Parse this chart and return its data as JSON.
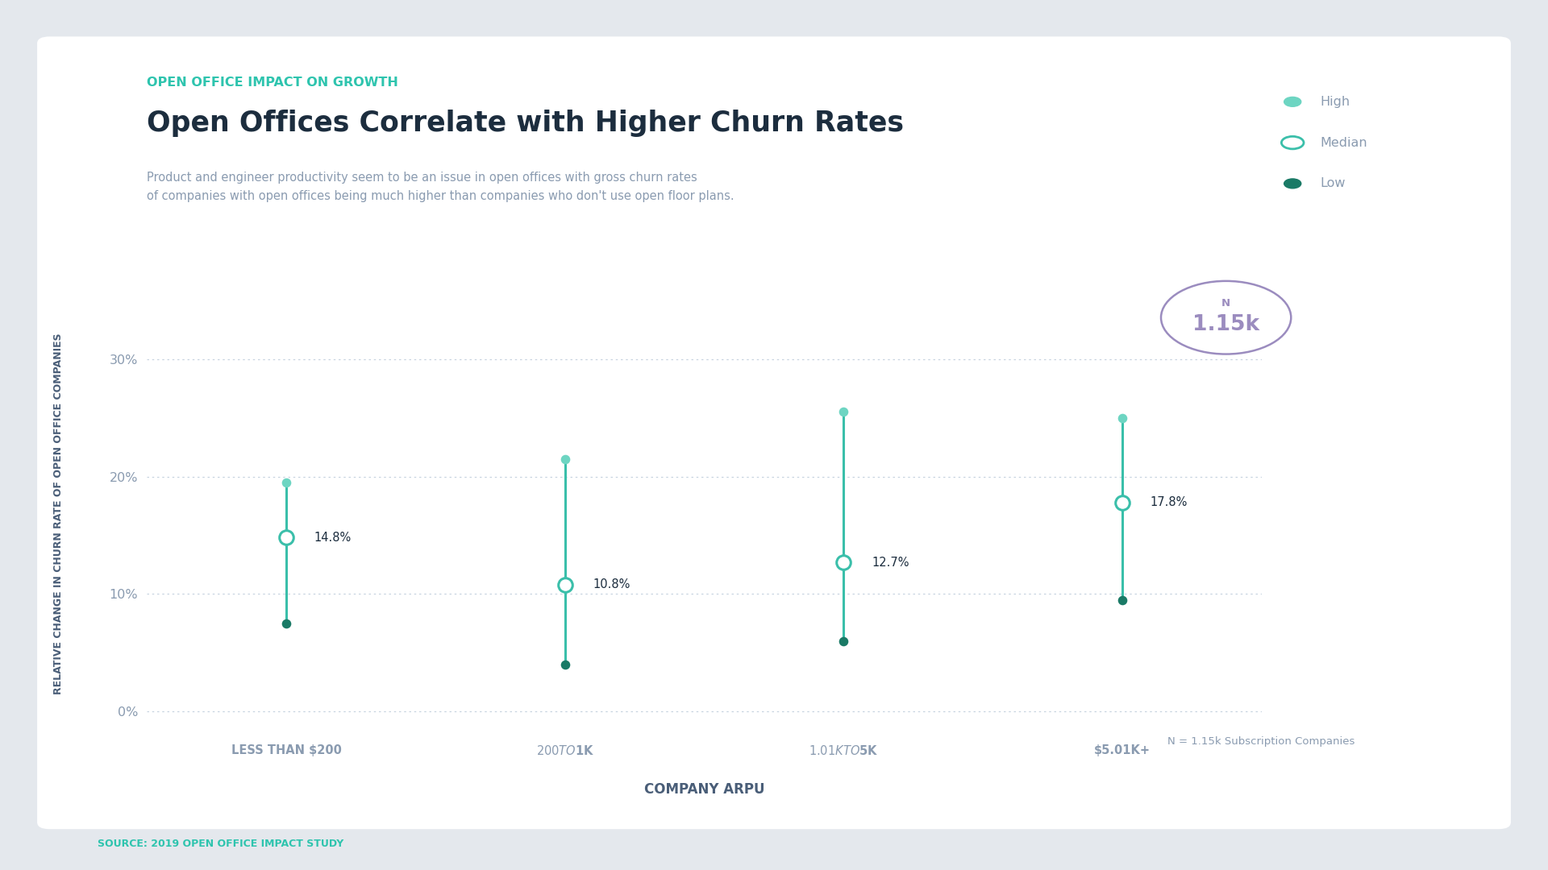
{
  "supertitle": "OPEN OFFICE IMPACT ON GROWTH",
  "title": "Open Offices Correlate with Higher Churn Rates",
  "subtitle": "Product and engineer productivity seem to be an issue in open offices with gross churn rates\nof companies with open offices being much higher than companies who don't use open floor plans.",
  "xlabel": "COMPANY ARPU",
  "ylabel": "RELATIVE CHANGE IN CHURN RATE OF OPEN OFFICE COMPANIES",
  "source": "SOURCE: 2019 OPEN OFFICE IMPACT STUDY",
  "n_label": "N",
  "n_value": "1.15k",
  "n_note": "N = 1.15k Subscription Companies",
  "categories": [
    "LESS THAN $200",
    "$200 TO $1K",
    "$1.01K TO $5K",
    "$5.01K+"
  ],
  "high": [
    19.5,
    21.5,
    25.5,
    25.0
  ],
  "median": [
    14.8,
    10.8,
    12.7,
    17.8
  ],
  "low": [
    7.5,
    4.0,
    6.0,
    9.5
  ],
  "median_labels": [
    "14.8%",
    "10.8%",
    "12.7%",
    "17.8%"
  ],
  "ylim": [
    -2,
    35
  ],
  "yticks": [
    0,
    10,
    20,
    30
  ],
  "ytick_labels": [
    "0%",
    "10%",
    "20%",
    "30%"
  ],
  "color_high": "#6dd5c2",
  "color_median_fill": "#ffffff",
  "color_median_edge": "#3bbfaa",
  "color_low": "#1a7a66",
  "color_line": "#3abfaa",
  "supertitle_color": "#2ec4ae",
  "title_color": "#1c2d3e",
  "subtitle_color": "#8a9bb0",
  "axis_label_color": "#4a5e78",
  "tick_color": "#8a9bb0",
  "grid_color": "#c8d4e0",
  "background_color": "#ffffff",
  "outer_background": "#e4e8ed",
  "legend_labels": [
    "High",
    "Median",
    "Low"
  ],
  "annotation_color": "#1c2d3e",
  "n_circle_color": "#9b8cbf"
}
